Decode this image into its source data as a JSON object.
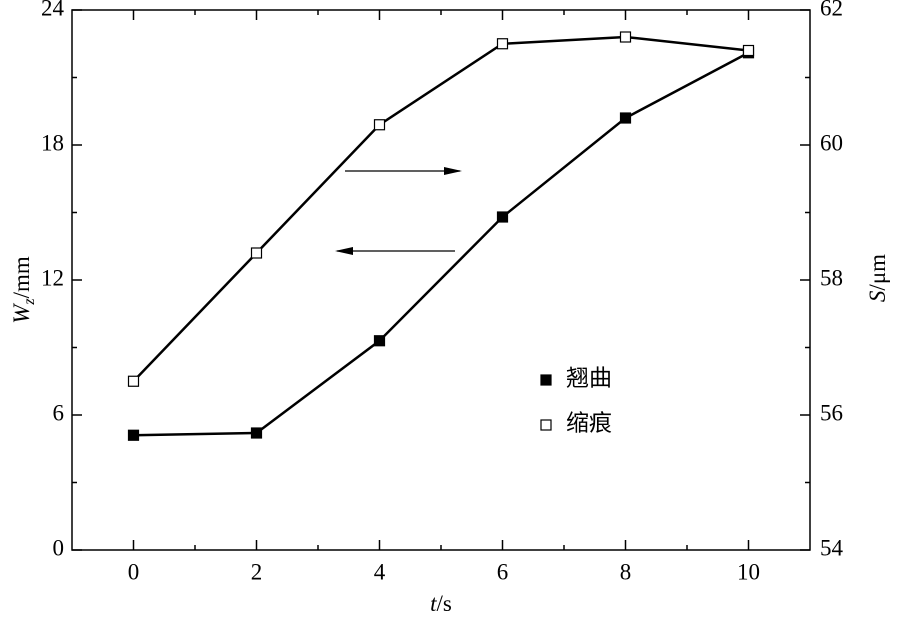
{
  "chart_data": {
    "type": "line",
    "xlabel": {
      "symbol": "t",
      "unit": "/s"
    },
    "ylabel": {
      "symbol": "W",
      "subscript": "z",
      "unit": "/mm"
    },
    "y2label": {
      "symbol": "S",
      "unit": "/μm"
    },
    "x": [
      0,
      2,
      4,
      6,
      8,
      10
    ],
    "xlim": [
      -1,
      11
    ],
    "xticks": [
      0,
      2,
      4,
      6,
      8,
      10
    ],
    "ylim": [
      0,
      24
    ],
    "yticks": [
      0,
      6,
      12,
      18,
      24
    ],
    "y2lim": [
      54,
      62
    ],
    "y2ticks": [
      54,
      56,
      58,
      60,
      62
    ],
    "series": [
      {
        "name": "翘曲",
        "color": "#000000",
        "marker": "filled",
        "values": [
          5.1,
          5.2,
          9.3,
          14.8,
          19.2,
          22.1
        ]
      },
      {
        "name": "缩痕",
        "color": "#000000",
        "marker": "open",
        "axis": "y2",
        "values": [
          56.5,
          58.4,
          60.3,
          61.5,
          61.6,
          61.4
        ]
      }
    ]
  }
}
